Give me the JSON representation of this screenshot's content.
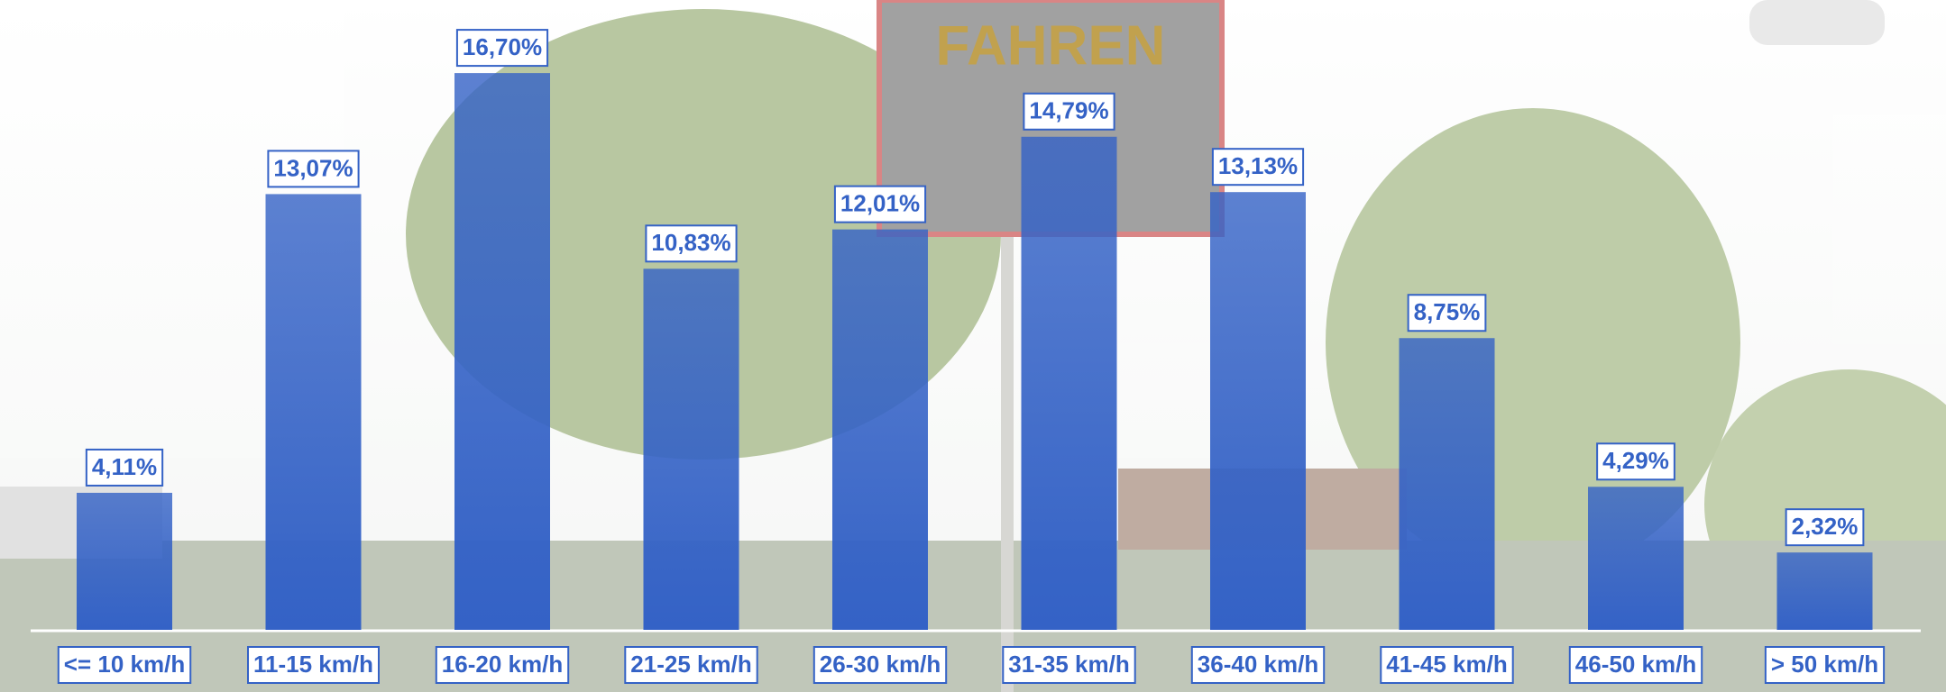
{
  "chart_data": {
    "type": "bar",
    "sign_text": "FAHREN",
    "categories": [
      "<= 10 km/h",
      "11-15 km/h",
      "16-20 km/h",
      "21-25 km/h",
      "26-30 km/h",
      "31-35 km/h",
      "36-40 km/h",
      "41-45 km/h",
      "46-50 km/h",
      "> 50 km/h"
    ],
    "values": [
      4.11,
      13.07,
      16.7,
      10.83,
      12.01,
      14.79,
      13.13,
      8.75,
      4.29,
      2.32
    ],
    "value_labels": [
      "4,11%",
      "13,07%",
      "16,70%",
      "10,83%",
      "12,01%",
      "14,79%",
      "13,13%",
      "8,75%",
      "4,29%",
      "2,32%"
    ],
    "color": "#3462c6",
    "ylim": [
      0,
      18
    ]
  }
}
